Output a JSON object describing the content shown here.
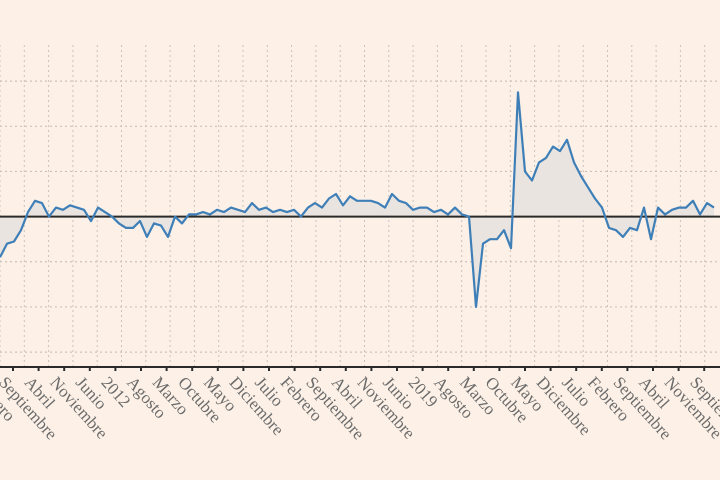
{
  "chart_data": {
    "type": "line",
    "title": "",
    "xlabel": "",
    "ylabel": "",
    "ylim": [
      -3.33,
      3.8
    ],
    "yticks": [
      -3,
      -2,
      -1,
      0,
      1,
      2,
      3
    ],
    "grid": true,
    "baseline": 0,
    "colors": {
      "background": "#fdf1e7",
      "line": "#3f7fb8",
      "fill": "#e9e4df",
      "grid": "#c9c2bb",
      "axis": "#2a2a2a",
      "label": "#6b6b6b"
    },
    "tick_labels": [
      "Febrero",
      "Septiembre",
      "Abril",
      "Noviembre",
      "Junio",
      "2012",
      "Agosto",
      "Marzo",
      "Octubre",
      "Mayo",
      "Diciembre",
      "Julio",
      "Febrero",
      "Septiembre",
      "Abril",
      "Noviembre",
      "Junio",
      "2019",
      "Agosto",
      "Marzo",
      "Octubre",
      "Mayo",
      "Diciembre",
      "Julio",
      "Febrero",
      "Septiembre",
      "Abril",
      "Noviembre",
      "Septiembre"
    ],
    "series": [
      {
        "name": "serie",
        "values": [
          -0.9,
          -0.6,
          -0.55,
          -0.3,
          0.1,
          0.35,
          0.3,
          0.0,
          0.2,
          0.15,
          0.25,
          0.2,
          0.15,
          -0.1,
          0.2,
          0.1,
          0.0,
          -0.15,
          -0.25,
          -0.25,
          -0.1,
          -0.45,
          -0.15,
          -0.2,
          -0.45,
          0.0,
          -0.15,
          0.05,
          0.05,
          0.1,
          0.05,
          0.15,
          0.1,
          0.2,
          0.15,
          0.1,
          0.3,
          0.15,
          0.2,
          0.1,
          0.15,
          0.1,
          0.15,
          0.0,
          0.2,
          0.3,
          0.2,
          0.4,
          0.5,
          0.25,
          0.45,
          0.35,
          0.35,
          0.35,
          0.3,
          0.2,
          0.5,
          0.35,
          0.3,
          0.15,
          0.2,
          0.2,
          0.1,
          0.15,
          0.05,
          0.2,
          0.05,
          0.0,
          -2.0,
          -0.6,
          -0.5,
          -0.5,
          -0.3,
          -0.7,
          2.75,
          1.0,
          0.8,
          1.2,
          1.3,
          1.55,
          1.45,
          1.7,
          1.2,
          0.9,
          0.65,
          0.4,
          0.2,
          -0.25,
          -0.3,
          -0.45,
          -0.25,
          -0.3,
          0.2,
          -0.5,
          0.2,
          0.05,
          0.15,
          0.2,
          0.2,
          0.35,
          0.05,
          0.3,
          0.2
        ]
      }
    ]
  }
}
